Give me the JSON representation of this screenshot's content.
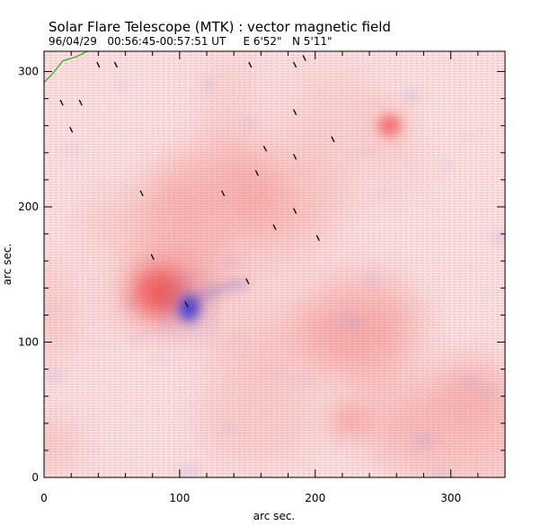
{
  "chart_data": {
    "type": "heatmap",
    "title": "Solar Flare Telescope (MTK) : vector magnetic field",
    "subtitle": "96/04/29   00:56:45-00:57:51 UT     E 6'52\"   N 5'11\"",
    "xlabel": "arc sec.",
    "ylabel": "arc sec.",
    "xlim": [
      0,
      340
    ],
    "ylim": [
      0,
      315
    ],
    "x_ticks": [
      0,
      100,
      200,
      300
    ],
    "y_ticks": [
      0,
      100,
      200,
      300
    ],
    "colors": {
      "positive_polarity": "#f05a5a",
      "negative_polarity": "#3c3cdc",
      "field_vectors": "#000000",
      "contour": "#3cb43c"
    },
    "features": [
      {
        "name": "positive-sunspot",
        "x": 85,
        "y": 137,
        "polarity": "positive"
      },
      {
        "name": "negative-sunspot",
        "x": 107,
        "y": 125,
        "polarity": "negative"
      },
      {
        "name": "positive-plage",
        "x": 255,
        "y": 260,
        "polarity": "positive"
      },
      {
        "name": "positive-plage-south",
        "x": 225,
        "y": 42,
        "polarity": "positive"
      }
    ],
    "vectors": [
      {
        "x": 40,
        "y": 305
      },
      {
        "x": 53,
        "y": 305
      },
      {
        "x": 152,
        "y": 305
      },
      {
        "x": 185,
        "y": 305
      },
      {
        "x": 192,
        "y": 310
      },
      {
        "x": 13,
        "y": 277
      },
      {
        "x": 27,
        "y": 277
      },
      {
        "x": 20,
        "y": 257
      },
      {
        "x": 185,
        "y": 270
      },
      {
        "x": 213,
        "y": 250
      },
      {
        "x": 163,
        "y": 243
      },
      {
        "x": 185,
        "y": 237
      },
      {
        "x": 157,
        "y": 225
      },
      {
        "x": 72,
        "y": 210
      },
      {
        "x": 132,
        "y": 210
      },
      {
        "x": 185,
        "y": 197
      },
      {
        "x": 170,
        "y": 185
      },
      {
        "x": 202,
        "y": 177
      },
      {
        "x": 80,
        "y": 163
      },
      {
        "x": 150,
        "y": 145
      },
      {
        "x": 105,
        "y": 128
      }
    ]
  }
}
